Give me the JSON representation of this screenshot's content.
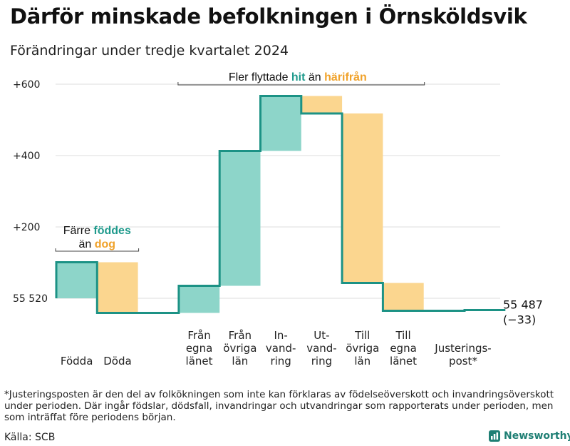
{
  "title": "Därför minskade befolkningen i Örnsköldsvik",
  "subtitle": "Förändringar under tredje kvartalet 2024",
  "footnote": "*Justeringsposten är den del av folkökningen som inte kan förklaras av födelseöverskott och invandringsöverskott under perioden. Där ingår födslar, dödsfall, invandringar och utvandringar som rapporterats under perioden, men som inträffat före periodens början.",
  "source": "Källa: SCB",
  "brand": "Newsworthy",
  "colors": {
    "increase": "#8dd5c9",
    "decrease": "#fbd68f",
    "line": "#1c9285",
    "hit_text": "#1f9a8c",
    "harifran_text": "#f0a22a",
    "grid": "#dddddd",
    "bracket": "#444444"
  },
  "chart_data": {
    "type": "waterfall",
    "start_value": 55520,
    "end_value": 55487,
    "end_label": "55 487",
    "end_change_label": "(−33)",
    "y_ticks": [
      {
        "value": 0,
        "label": "55 520"
      },
      {
        "value": 200,
        "label": "+200"
      },
      {
        "value": 400,
        "label": "+400"
      },
      {
        "value": 600,
        "label": "+600"
      }
    ],
    "ylim": [
      -50,
      650
    ],
    "steps": [
      {
        "label": [
          "Födda"
        ],
        "value": 101,
        "from": 0,
        "to": 101,
        "kind": "increase"
      },
      {
        "label": [
          "Döda"
        ],
        "value": -142,
        "from": 101,
        "to": -41,
        "kind": "decrease"
      },
      {
        "label": [],
        "value": 0,
        "from": -41,
        "to": -41,
        "kind": "gap"
      },
      {
        "label": [
          "Från",
          "egna",
          "länet"
        ],
        "value": 76,
        "from": -41,
        "to": 35,
        "kind": "increase"
      },
      {
        "label": [
          "Från",
          "övriga",
          "län"
        ],
        "value": 378,
        "from": 35,
        "to": 413,
        "kind": "increase"
      },
      {
        "label": [
          "In-",
          "vand-",
          "ring"
        ],
        "value": 154,
        "from": 413,
        "to": 567,
        "kind": "increase"
      },
      {
        "label": [
          "Ut-",
          "vand-",
          "ring"
        ],
        "value": -49,
        "from": 567,
        "to": 518,
        "kind": "decrease"
      },
      {
        "label": [
          "Till",
          "övriga",
          "län"
        ],
        "value": -475,
        "from": 518,
        "to": 43,
        "kind": "decrease"
      },
      {
        "label": [
          "Till",
          "egna",
          "länet"
        ],
        "value": -78,
        "from": 43,
        "to": -35,
        "kind": "decrease"
      },
      {
        "label": [],
        "value": 0,
        "from": -35,
        "to": -35,
        "kind": "gap"
      },
      {
        "label": [
          "Justerings-",
          "post*"
        ],
        "value": 2,
        "from": -35,
        "to": -33,
        "kind": "adjustment"
      }
    ],
    "annotations": [
      {
        "id": "births",
        "text_parts": [
          {
            "line": 0,
            "text": "Färre ",
            "color": "dark",
            "bold": false
          },
          {
            "line": 0,
            "text": "föddes",
            "color": "increase",
            "bold": true
          },
          {
            "line": 1,
            "text": "än ",
            "color": "dark",
            "bold": false
          },
          {
            "line": 1,
            "text": "dog",
            "color": "decrease",
            "bold": true
          }
        ],
        "span": [
          0,
          1
        ]
      },
      {
        "id": "migration",
        "text_parts": [
          {
            "line": 0,
            "text": "Fler flyttade ",
            "color": "dark",
            "bold": false
          },
          {
            "line": 0,
            "text": "hit",
            "color": "increase",
            "bold": true
          },
          {
            "line": 0,
            "text": "  än ",
            "color": "dark",
            "bold": false
          },
          {
            "line": 0,
            "text": "härifrån",
            "color": "decrease",
            "bold": true
          }
        ],
        "span": [
          3,
          8
        ]
      }
    ]
  }
}
